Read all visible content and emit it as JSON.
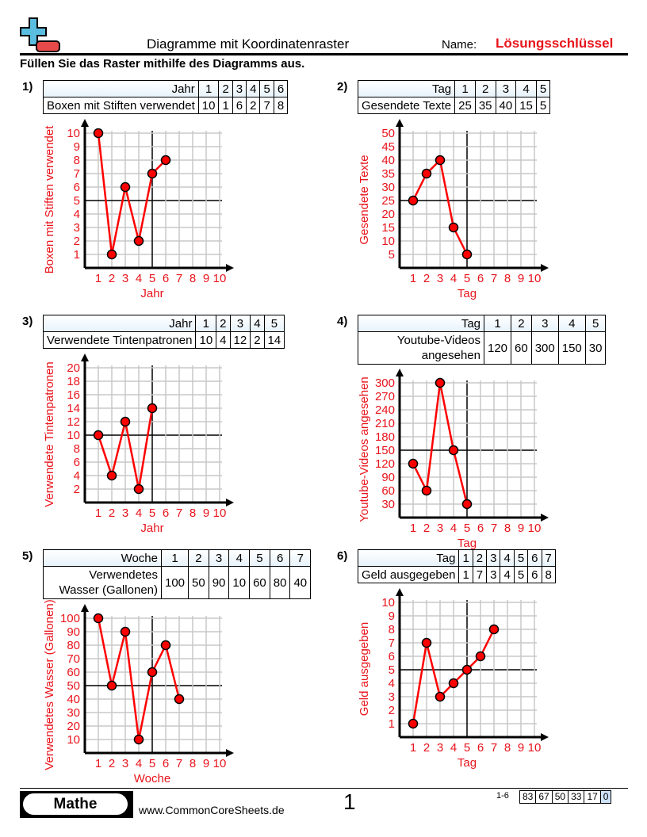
{
  "header": {
    "title": "Diagramme mit Koordinatenraster",
    "name_label": "Name:",
    "name_value": "Lösungsschlüssel",
    "instructions": "Füllen Sie das Raster mithilfe des Diagramms aus."
  },
  "footer": {
    "brand": "Mathe",
    "website": "www.CommonCoreSheets.de",
    "page": "1",
    "range": "1-6",
    "scores": [
      "83",
      "67",
      "50",
      "33",
      "17",
      "0"
    ]
  },
  "colors": {
    "series": "#ff0000",
    "axis_text": "#e8141c",
    "grid": "#c8c8c8",
    "logo_blue": "#5bbde0",
    "logo_red": "#e84a4a"
  },
  "chart_data": [
    {
      "number": "1)",
      "type": "line",
      "xlabel": "Jahr",
      "ylabel": "Boxen mit Stiften verwendet",
      "x": [
        1,
        2,
        3,
        4,
        5,
        6
      ],
      "y": [
        10,
        1,
        6,
        2,
        7,
        8
      ],
      "xlim": [
        0,
        10
      ],
      "ylim": [
        0,
        10
      ],
      "xticks": [
        "1",
        "2",
        "3",
        "4",
        "5",
        "6",
        "7",
        "8",
        "9",
        "10"
      ],
      "yticks": [
        "1",
        "2",
        "3",
        "4",
        "5",
        "6",
        "7",
        "8",
        "9",
        "10"
      ],
      "grid": true
    },
    {
      "number": "2)",
      "type": "line",
      "xlabel": "Tag",
      "ylabel": "Gesendete Texte",
      "x": [
        1,
        2,
        3,
        4,
        5
      ],
      "y": [
        25,
        35,
        40,
        15,
        5
      ],
      "xlim": [
        0,
        10
      ],
      "ylim": [
        0,
        50
      ],
      "xticks": [
        "1",
        "2",
        "3",
        "4",
        "5",
        "6",
        "7",
        "8",
        "9",
        "10"
      ],
      "yticks": [
        "5",
        "10",
        "15",
        "20",
        "25",
        "30",
        "35",
        "40",
        "45",
        "50"
      ],
      "grid": true
    },
    {
      "number": "3)",
      "type": "line",
      "xlabel": "Jahr",
      "ylabel": "Verwendete Tintenpatronen",
      "x": [
        1,
        2,
        3,
        4,
        5
      ],
      "y": [
        10,
        4,
        12,
        2,
        14
      ],
      "xlim": [
        0,
        10
      ],
      "ylim": [
        0,
        20
      ],
      "xticks": [
        "1",
        "2",
        "3",
        "4",
        "5",
        "6",
        "7",
        "8",
        "9",
        "10"
      ],
      "yticks": [
        "2",
        "4",
        "6",
        "8",
        "10",
        "12",
        "14",
        "16",
        "18",
        "20"
      ],
      "grid": true
    },
    {
      "number": "4)",
      "type": "line",
      "xlabel": "Tag",
      "ylabel": "Youtube-Videos angesehen",
      "x": [
        1,
        2,
        3,
        4,
        5
      ],
      "y": [
        120,
        60,
        300,
        150,
        30
      ],
      "xlim": [
        0,
        10
      ],
      "ylim": [
        0,
        300
      ],
      "xticks": [
        "1",
        "2",
        "3",
        "4",
        "5",
        "6",
        "7",
        "8",
        "9",
        "10"
      ],
      "yticks": [
        "30",
        "60",
        "90",
        "120",
        "150",
        "180",
        "210",
        "240",
        "270",
        "300"
      ],
      "grid": true
    },
    {
      "number": "5)",
      "type": "line",
      "xlabel": "Woche",
      "ylabel": "Verwendetes Wasser (Gallonen)",
      "x": [
        1,
        2,
        3,
        4,
        5,
        6,
        7
      ],
      "y": [
        100,
        50,
        90,
        10,
        60,
        80,
        40
      ],
      "xlim": [
        0,
        10
      ],
      "ylim": [
        0,
        100
      ],
      "xticks": [
        "1",
        "2",
        "3",
        "4",
        "5",
        "6",
        "7",
        "8",
        "9",
        "10"
      ],
      "yticks": [
        "10",
        "20",
        "30",
        "40",
        "50",
        "60",
        "70",
        "80",
        "90",
        "100"
      ],
      "grid": true
    },
    {
      "number": "6)",
      "type": "line",
      "xlabel": "Tag",
      "ylabel": "Geld ausgegeben",
      "x": [
        1,
        2,
        3,
        4,
        5,
        6,
        7
      ],
      "y": [
        1,
        7,
        3,
        4,
        5,
        6,
        8
      ],
      "xlim": [
        0,
        10
      ],
      "ylim": [
        0,
        10
      ],
      "xticks": [
        "1",
        "2",
        "3",
        "4",
        "5",
        "6",
        "7",
        "8",
        "9",
        "10"
      ],
      "yticks": [
        "1",
        "2",
        "3",
        "4",
        "5",
        "6",
        "7",
        "8",
        "9",
        "10"
      ],
      "grid": true
    }
  ],
  "tables": [
    {
      "xhead": "Jahr",
      "yhead": "Boxen mit Stiften verwendet",
      "x": [
        "1",
        "2",
        "3",
        "4",
        "5",
        "6"
      ],
      "y": [
        "10",
        "1",
        "6",
        "2",
        "7",
        "8"
      ]
    },
    {
      "xhead": "Tag",
      "yhead": "Gesendete Texte",
      "x": [
        "1",
        "2",
        "3",
        "4",
        "5"
      ],
      "y": [
        "25",
        "35",
        "40",
        "15",
        "5"
      ]
    },
    {
      "xhead": "Jahr",
      "yhead": "Verwendete Tintenpatronen",
      "x": [
        "1",
        "2",
        "3",
        "4",
        "5"
      ],
      "y": [
        "10",
        "4",
        "12",
        "2",
        "14"
      ]
    },
    {
      "xhead": "Tag",
      "yhead": "Youtube-Videos angesehen",
      "x": [
        "1",
        "2",
        "3",
        "4",
        "5"
      ],
      "y": [
        "120",
        "60",
        "300",
        "150",
        "30"
      ]
    },
    {
      "xhead": "Woche",
      "yhead": "Verwendetes Wasser (Gallonen)",
      "x": [
        "1",
        "2",
        "3",
        "4",
        "5",
        "6",
        "7"
      ],
      "y": [
        "100",
        "50",
        "90",
        "10",
        "60",
        "80",
        "40"
      ]
    },
    {
      "xhead": "Tag",
      "yhead": "Geld ausgegeben",
      "x": [
        "1",
        "2",
        "3",
        "4",
        "5",
        "6",
        "7"
      ],
      "y": [
        "1",
        "7",
        "3",
        "4",
        "5",
        "6",
        "8"
      ]
    }
  ]
}
